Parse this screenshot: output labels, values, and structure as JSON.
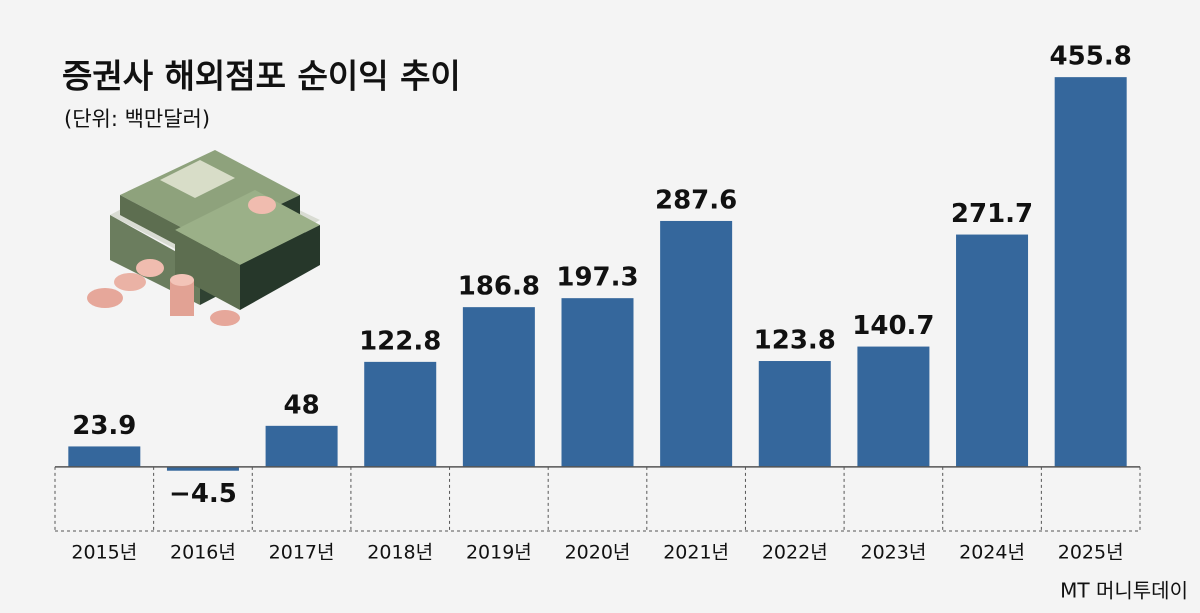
{
  "chart_data": {
    "type": "bar",
    "title": "증권사 해외점포 순이익 추이",
    "subtitle": "(단위: 백만달러)",
    "categories": [
      "2015년",
      "2016년",
      "2017년",
      "2018년",
      "2019년",
      "2020년",
      "2021년",
      "2022년",
      "2023년",
      "2024년",
      "2025년"
    ],
    "values": [
      23.9,
      -4.5,
      48,
      122.8,
      186.8,
      197.3,
      287.6,
      123.8,
      140.7,
      271.7,
      455.8
    ],
    "value_labels": [
      "23.9",
      "−4.5",
      "48",
      "122.8",
      "186.8",
      "197.3",
      "287.6",
      "123.8",
      "140.7",
      "271.7",
      "455.8"
    ],
    "color": "#35679c",
    "ylim": [
      -75,
      470
    ],
    "watermark": "MT 머니투데이"
  }
}
